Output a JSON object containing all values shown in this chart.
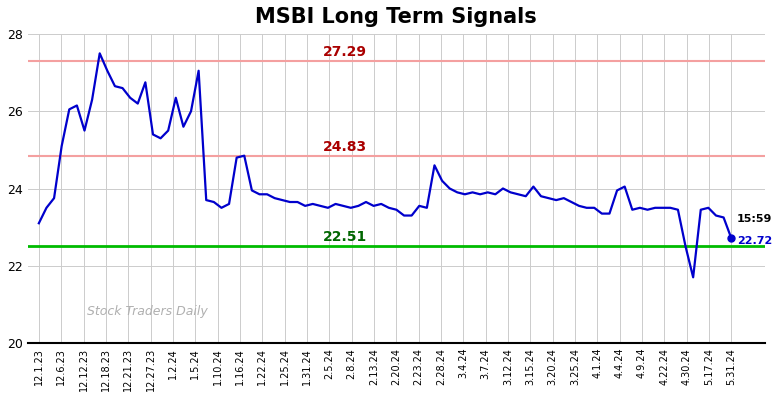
{
  "title": "MSBI Long Term Signals",
  "title_fontsize": 15,
  "background_color": "#ffffff",
  "line_color": "#0000cc",
  "line_width": 1.6,
  "watermark": "Stock Traders Daily",
  "watermark_color": "#b0b0b0",
  "hline_green": 22.51,
  "hline_green_color": "#00bb00",
  "hline_red1": 27.29,
  "hline_red1_color": "#f4a0a0",
  "hline_red2": 24.83,
  "hline_red2_color": "#f4a0a0",
  "label_27_29": "27.29",
  "label_24_83": "24.83",
  "label_22_51": "22.51",
  "label_color_red": "#aa0000",
  "label_color_green": "#006600",
  "last_value": 22.72,
  "ylim": [
    20,
    28
  ],
  "yticks": [
    20,
    22,
    24,
    26,
    28
  ],
  "grid_color": "#cccccc",
  "x_labels": [
    "12.1.23",
    "12.6.23",
    "12.12.23",
    "12.18.23",
    "12.21.23",
    "12.27.23",
    "1.2.24",
    "1.5.24",
    "1.10.24",
    "1.16.24",
    "1.22.24",
    "1.25.24",
    "1.31.24",
    "2.5.24",
    "2.8.24",
    "2.13.24",
    "2.20.24",
    "2.23.24",
    "2.28.24",
    "3.4.24",
    "3.7.24",
    "3.12.24",
    "3.15.24",
    "3.20.24",
    "3.25.24",
    "4.1.24",
    "4.4.24",
    "4.9.24",
    "4.22.24",
    "4.30.24",
    "5.17.24",
    "5.31.24"
  ],
  "prices": [
    23.1,
    23.5,
    23.75,
    25.1,
    26.05,
    26.15,
    25.5,
    26.3,
    27.5,
    27.05,
    26.65,
    26.6,
    26.35,
    26.2,
    26.75,
    25.4,
    25.3,
    25.5,
    26.35,
    25.6,
    26.0,
    27.05,
    23.7,
    23.65,
    23.5,
    23.6,
    24.8,
    24.85,
    23.95,
    23.85,
    23.85,
    23.75,
    23.7,
    23.65,
    23.65,
    23.55,
    23.6,
    23.55,
    23.5,
    23.6,
    23.55,
    23.5,
    23.55,
    23.65,
    23.55,
    23.6,
    23.5,
    23.45,
    23.3,
    23.3,
    23.55,
    23.5,
    24.6,
    24.2,
    24.0,
    23.9,
    23.85,
    23.9,
    23.85,
    23.9,
    23.85,
    24.0,
    23.9,
    23.85,
    23.8,
    24.05,
    23.8,
    23.75,
    23.7,
    23.75,
    23.65,
    23.55,
    23.5,
    23.5,
    23.35,
    23.35,
    23.95,
    24.05,
    23.45,
    23.5,
    23.45,
    23.5,
    23.5,
    23.5,
    23.45,
    22.5,
    21.7,
    23.45,
    23.5,
    23.3,
    23.25,
    22.72
  ],
  "end_dot_color": "#0000cc"
}
